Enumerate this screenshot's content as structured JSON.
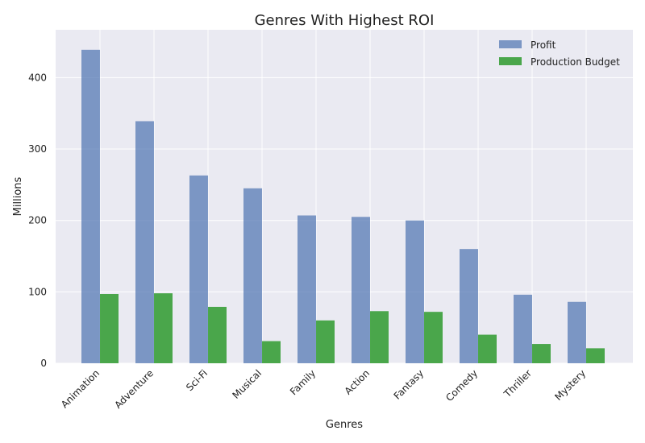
{
  "chart_data": {
    "type": "bar",
    "title": "Genres With Highest ROI",
    "xlabel": "Genres",
    "ylabel": "Millions",
    "categories": [
      "Animation",
      "Adventure",
      "Sci-Fi",
      "Musical",
      "Family",
      "Action",
      "Fantasy",
      "Comedy",
      "Thriller",
      "Mystery"
    ],
    "series": [
      {
        "name": "Profit",
        "color": "#4c72b0",
        "values": [
          439,
          339,
          263,
          245,
          207,
          205,
          200,
          160,
          96,
          86
        ]
      },
      {
        "name": "Production Budget",
        "color": "#2e9a2e",
        "values": [
          97,
          98,
          79,
          31,
          60,
          73,
          72,
          40,
          27,
          21
        ]
      }
    ],
    "ylim": [
      0,
      467
    ],
    "yticks": [
      0,
      100,
      200,
      300,
      400
    ],
    "grid": true,
    "legend_position": "top-right",
    "background": "#eaeaf2"
  }
}
